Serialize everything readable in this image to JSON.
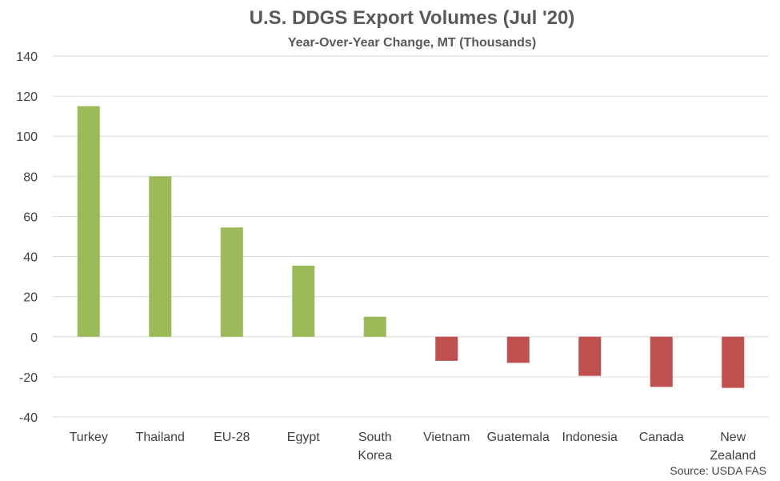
{
  "chart_data": {
    "type": "bar",
    "title": "U.S. DDGS Export Volumes (Jul '20)",
    "subtitle": "Year-Over-Year Change, MT (Thousands)",
    "xlabel": "",
    "ylabel": "",
    "ylim": [
      -40,
      140
    ],
    "yticks": [
      -40,
      -20,
      0,
      20,
      40,
      60,
      80,
      100,
      120,
      140
    ],
    "categories": [
      [
        "Turkey"
      ],
      [
        "Thailand"
      ],
      [
        "EU-28"
      ],
      [
        "Egypt"
      ],
      [
        "South",
        "Korea"
      ],
      [
        "Vietnam"
      ],
      [
        "Guatemala"
      ],
      [
        "Indonesia"
      ],
      [
        "Canada"
      ],
      [
        "New",
        "Zealand"
      ]
    ],
    "values": [
      115,
      80,
      54.5,
      35.5,
      10,
      -12,
      -13,
      -19.5,
      -25,
      -25.5
    ],
    "grid": true,
    "legend": "none",
    "colors": {
      "positive": "#9bbb59",
      "negative": "#c0504d",
      "grid": "#d9d9d9",
      "text": "#404040",
      "title": "#595959"
    },
    "source": "Source: USDA FAS"
  }
}
